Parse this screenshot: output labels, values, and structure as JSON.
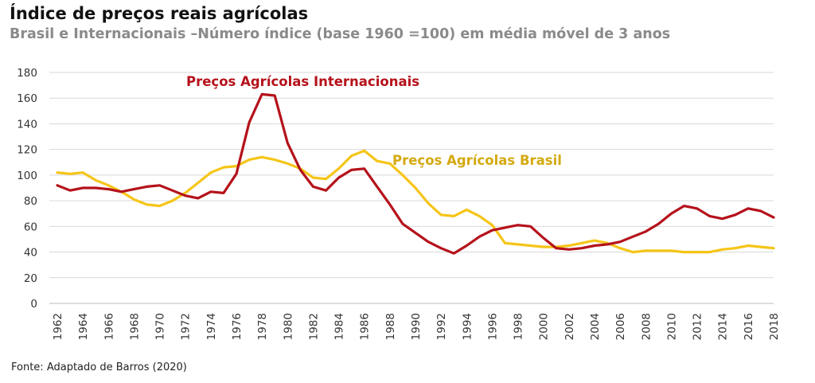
{
  "title": "Índice de preços reais agrícolas",
  "subtitle": "Brasil e Internacionais –Número índice (base 1960 =100) em média móvel de 3 anos",
  "source": "Fonte: Adaptado de Barros (2020)",
  "colors": {
    "internacionais": "#B5121B",
    "brasil": "#F5C518",
    "brasil_label": "#D4A90F",
    "grid": "#D9D9D9",
    "axis": "#BFBFBF"
  },
  "chart_data": {
    "type": "line",
    "title": "Índice de preços reais agrícolas",
    "subtitle": "Brasil e Internacionais –Número índice (base 1960 =100) em média móvel de 3 anos",
    "ylim": [
      0,
      180
    ],
    "yticks": [
      0,
      20,
      40,
      60,
      80,
      100,
      120,
      140,
      160,
      180
    ],
    "xticks": [
      1962,
      1964,
      1966,
      1968,
      1970,
      1972,
      1974,
      1976,
      1978,
      1980,
      1982,
      1984,
      1986,
      1988,
      1990,
      1992,
      1994,
      1996,
      1998,
      2000,
      2002,
      2004,
      2006,
      2008,
      2010,
      2012,
      2014,
      2016,
      2018
    ],
    "xlim": [
      1962,
      2018
    ],
    "grid": "horizontal",
    "x": [
      1962,
      1963,
      1964,
      1965,
      1966,
      1967,
      1968,
      1969,
      1970,
      1971,
      1972,
      1973,
      1974,
      1975,
      1976,
      1977,
      1978,
      1979,
      1980,
      1981,
      1982,
      1983,
      1984,
      1985,
      1986,
      1987,
      1988,
      1989,
      1990,
      1991,
      1992,
      1993,
      1994,
      1995,
      1996,
      1997,
      1998,
      1999,
      2000,
      2001,
      2002,
      2003,
      2004,
      2005,
      2006,
      2007,
      2008,
      2009,
      2010,
      2011,
      2012,
      2013,
      2014,
      2015,
      2016,
      2017,
      2018
    ],
    "series": [
      {
        "name": "Preços Agrícolas Internacionais",
        "values": [
          92,
          88,
          90,
          90,
          89,
          87,
          89,
          91,
          92,
          88,
          84,
          82,
          87,
          86,
          101,
          141,
          163,
          162,
          125,
          104,
          91,
          88,
          98,
          104,
          105,
          91,
          77,
          62,
          55,
          48,
          43,
          39,
          45,
          52,
          57,
          59,
          61,
          60,
          51,
          43,
          42,
          43,
          45,
          46,
          48,
          52,
          56,
          62,
          70,
          76,
          74,
          68,
          66,
          69,
          74,
          72,
          67
        ]
      },
      {
        "name": "Preços Agrícolas Brasil",
        "values": [
          102,
          101,
          102,
          96,
          92,
          87,
          81,
          77,
          76,
          80,
          86,
          94,
          102,
          106,
          107,
          112,
          114,
          112,
          109,
          105,
          98,
          97,
          105,
          115,
          119,
          111,
          109,
          100,
          90,
          78,
          69,
          68,
          73,
          68,
          61,
          47,
          46,
          45,
          44,
          44,
          45,
          47,
          49,
          47,
          43,
          40,
          41,
          41,
          41,
          40,
          40,
          40,
          42,
          43,
          45,
          44,
          43
        ]
      }
    ]
  }
}
